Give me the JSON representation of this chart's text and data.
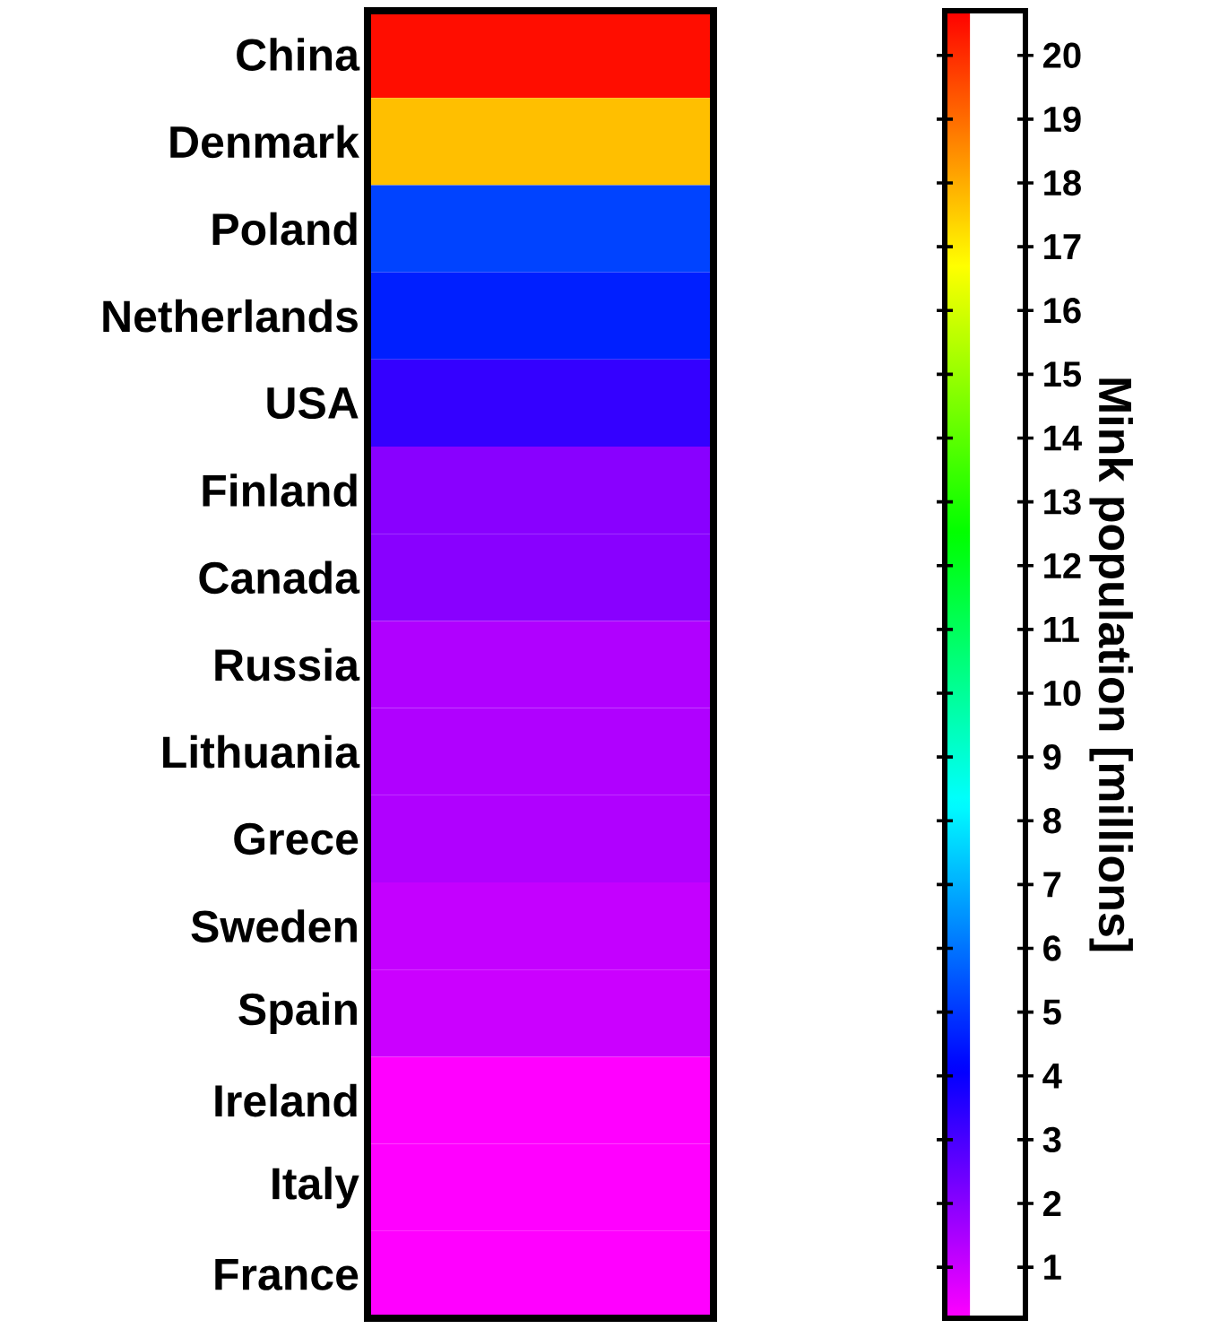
{
  "chart_data": {
    "type": "heatmap",
    "clabel": "Mink population [millions]",
    "categories": [
      null
    ],
    "y_categories": [
      "China",
      "Denmark",
      "Poland",
      "Netherlands",
      "USA",
      "Finland",
      "Canada",
      "Russia",
      "Lithuania",
      "Grece",
      "Sweden",
      "Spain",
      "Ireland",
      "Italy",
      "France"
    ],
    "cells": [
      [
        20.5
      ],
      [
        17.7
      ],
      [
        5.2
      ],
      [
        4.6
      ],
      [
        3.3
      ],
      [
        2.0
      ],
      [
        2.0
      ],
      [
        1.4
      ],
      [
        1.4
      ],
      [
        1.4
      ],
      [
        1.1
      ],
      [
        1.0
      ],
      [
        0.2
      ],
      [
        0.2
      ],
      [
        0.2
      ]
    ],
    "clim": [
      0.2,
      20.7
    ],
    "cticks": [
      1,
      2,
      3,
      4,
      5,
      6,
      7,
      8,
      9,
      10,
      11,
      12,
      13,
      14,
      15,
      16,
      17,
      18,
      19,
      20
    ]
  }
}
